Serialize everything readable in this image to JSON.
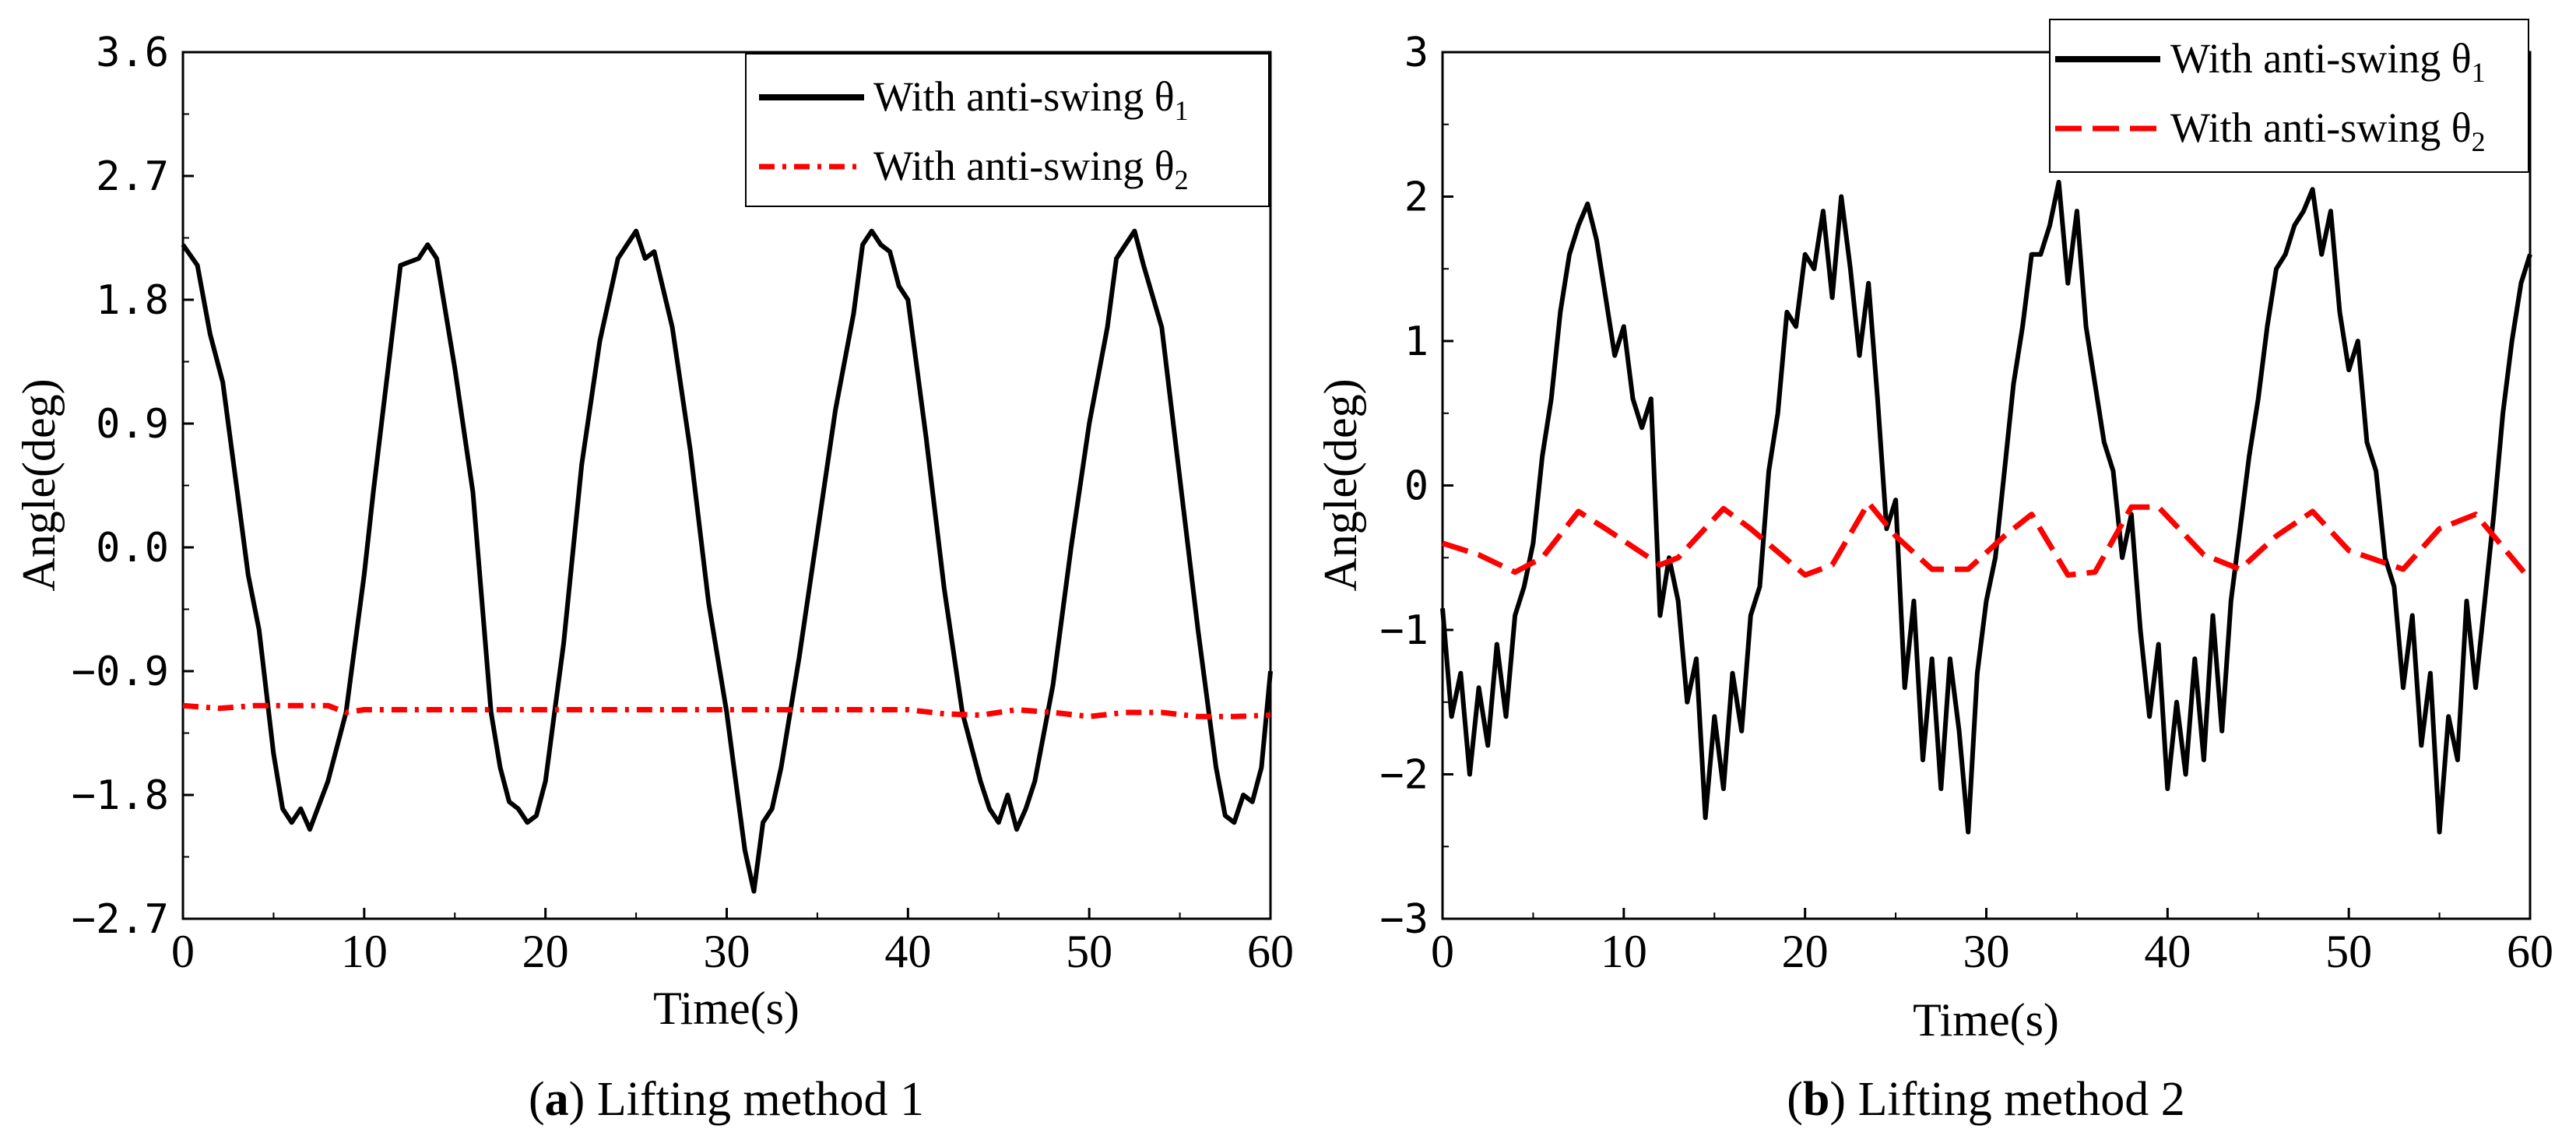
{
  "chart_data": [
    {
      "type": "line",
      "panel_letter": "a",
      "caption_text": "Lifting method 1",
      "xlabel": "Time(s)",
      "ylabel": "Angle(deg)",
      "xlim": [
        0,
        60
      ],
      "ylim": [
        -2.7,
        3.6
      ],
      "xticks": [
        0,
        10,
        20,
        30,
        40,
        50,
        60
      ],
      "xtick_labels": [
        "0",
        "10",
        "20",
        "30",
        "40",
        "50",
        "60"
      ],
      "yticks": [
        -2.7,
        -1.8,
        -0.9,
        0.0,
        0.9,
        1.8,
        2.7,
        3.6
      ],
      "ytick_labels": [
        "−2.7",
        "−1.8",
        "−0.9",
        "0.0",
        "0.9",
        "1.8",
        "2.7",
        "3.6"
      ],
      "legend_position": "top-right",
      "series": [
        {
          "name": "With anti-swing θ1",
          "label_prefix": "With anti-swing θ",
          "label_sub": "1",
          "color": "#000000",
          "style": "solid",
          "x": [
            0,
            0.8,
            1.5,
            2.2,
            3,
            3.6,
            4.2,
            5,
            5.5,
            6,
            6.5,
            7,
            8,
            9,
            10,
            10.5,
            11,
            11.5,
            12,
            13,
            13.5,
            14,
            15,
            16,
            16.5,
            17,
            17.5,
            18,
            18.5,
            19,
            19.5,
            20,
            20.5,
            21,
            22,
            23,
            24,
            24.5,
            25,
            25.5,
            26,
            27,
            28,
            29,
            30,
            30.5,
            31,
            31.5,
            32,
            32.5,
            33,
            34,
            35,
            36,
            37,
            37.5,
            38,
            38.5,
            39,
            39.5,
            40,
            41,
            42,
            43,
            44,
            44.5,
            45,
            45.5,
            46,
            46.5,
            47,
            48,
            49,
            50,
            51,
            51.5,
            52,
            52.5,
            53,
            54,
            55,
            56,
            57,
            57.5,
            58,
            58.5,
            59,
            59.5,
            60
          ],
          "y": [
            2.2,
            2.05,
            1.55,
            1.2,
            0.4,
            -0.2,
            -0.6,
            -1.5,
            -1.9,
            -2.0,
            -1.9,
            -2.05,
            -1.7,
            -1.2,
            -0.2,
            0.4,
            0.95,
            1.5,
            2.05,
            2.1,
            2.2,
            2.1,
            1.3,
            0.4,
            -0.4,
            -1.2,
            -1.6,
            -1.85,
            -1.9,
            -2.0,
            -1.95,
            -1.7,
            -1.2,
            -0.7,
            0.6,
            1.5,
            2.1,
            2.2,
            2.3,
            2.1,
            2.15,
            1.6,
            0.7,
            -0.4,
            -1.2,
            -1.7,
            -2.2,
            -2.5,
            -2.0,
            -1.9,
            -1.6,
            -0.8,
            0.1,
            1.0,
            1.7,
            2.2,
            2.3,
            2.2,
            2.15,
            1.9,
            1.8,
            0.8,
            -0.3,
            -1.2,
            -1.7,
            -1.9,
            -2.0,
            -1.8,
            -2.05,
            -1.9,
            -1.7,
            -1.0,
            0.0,
            0.9,
            1.6,
            2.1,
            2.2,
            2.3,
            2.05,
            1.6,
            0.5,
            -0.6,
            -1.6,
            -1.95,
            -2.0,
            -1.8,
            -1.85,
            -1.6,
            -0.9
          ]
        },
        {
          "name": "With anti-swing θ2",
          "label_prefix": "With anti-swing θ",
          "label_sub": "2",
          "color": "#ff0000",
          "style": "dashdot",
          "x": [
            0,
            2,
            4,
            6,
            8,
            9,
            10,
            20,
            30,
            40,
            42,
            44,
            46,
            48,
            50,
            52,
            54,
            56,
            58,
            60
          ],
          "y": [
            -1.15,
            -1.17,
            -1.15,
            -1.15,
            -1.15,
            -1.2,
            -1.18,
            -1.18,
            -1.18,
            -1.18,
            -1.21,
            -1.22,
            -1.18,
            -1.2,
            -1.23,
            -1.2,
            -1.2,
            -1.23,
            -1.23,
            -1.22
          ]
        }
      ]
    },
    {
      "type": "line",
      "panel_letter": "b",
      "caption_text": "Lifting method 2",
      "xlabel": "Time(s)",
      "ylabel": "Angle(deg)",
      "xlim": [
        0,
        60
      ],
      "ylim": [
        -3,
        3
      ],
      "xticks": [
        0,
        10,
        20,
        30,
        40,
        50,
        60
      ],
      "xtick_labels": [
        "0",
        "10",
        "20",
        "30",
        "40",
        "50",
        "60"
      ],
      "yticks": [
        -3,
        -2,
        -1,
        0,
        1,
        2,
        3
      ],
      "ytick_labels": [
        "−3",
        "−2",
        "−1",
        "0",
        "1",
        "2",
        "3"
      ],
      "legend_position": "top-right",
      "series": [
        {
          "name": "With anti-swing θ1",
          "label_prefix": "With anti-swing θ",
          "label_sub": "1",
          "color": "#000000",
          "style": "solid",
          "x": [
            0,
            0.5,
            1,
            1.5,
            2,
            2.5,
            3,
            3.5,
            4,
            4.5,
            5,
            5.5,
            6,
            6.5,
            7,
            7.5,
            8,
            8.5,
            9,
            9.5,
            10,
            10.5,
            11,
            11.5,
            12,
            12.5,
            13,
            13.5,
            14,
            14.5,
            15,
            15.5,
            16,
            16.5,
            17,
            17.5,
            18,
            18.5,
            19,
            19.5,
            20,
            20.5,
            21,
            21.5,
            22,
            22.5,
            23,
            23.5,
            24,
            24.5,
            25,
            25.5,
            26,
            26.5,
            27,
            27.5,
            28,
            28.5,
            29,
            29.5,
            30,
            30.5,
            31,
            31.5,
            32,
            32.5,
            33,
            33.5,
            34,
            34.5,
            35,
            35.5,
            36,
            36.5,
            37,
            37.5,
            38,
            38.5,
            39,
            39.5,
            40,
            40.5,
            41,
            41.5,
            42,
            42.5,
            43,
            43.5,
            44,
            44.5,
            45,
            45.5,
            46,
            46.5,
            47,
            47.5,
            48,
            48.5,
            49,
            49.5,
            50,
            50.5,
            51,
            51.5,
            52,
            52.5,
            53,
            53.5,
            54,
            54.5,
            55,
            55.5,
            56,
            56.5,
            57,
            57.5,
            58,
            58.5,
            59,
            59.5,
            60
          ],
          "y": [
            -0.85,
            -1.6,
            -1.3,
            -2.0,
            -1.4,
            -1.8,
            -1.1,
            -1.6,
            -0.9,
            -0.7,
            -0.4,
            0.2,
            0.6,
            1.2,
            1.6,
            1.8,
            1.95,
            1.7,
            1.3,
            0.9,
            1.1,
            0.6,
            0.4,
            0.6,
            -0.9,
            -0.5,
            -0.8,
            -1.5,
            -1.2,
            -2.3,
            -1.6,
            -2.1,
            -1.3,
            -1.7,
            -0.9,
            -0.7,
            0.1,
            0.5,
            1.2,
            1.1,
            1.6,
            1.5,
            1.9,
            1.3,
            2.0,
            1.5,
            0.9,
            1.4,
            0.6,
            -0.3,
            -0.1,
            -1.4,
            -0.8,
            -1.9,
            -1.2,
            -2.1,
            -1.2,
            -1.7,
            -2.4,
            -1.3,
            -0.8,
            -0.5,
            0.1,
            0.7,
            1.1,
            1.6,
            1.6,
            1.8,
            2.1,
            1.4,
            1.9,
            1.1,
            0.7,
            0.3,
            0.1,
            -0.5,
            -0.2,
            -1.0,
            -1.6,
            -1.1,
            -2.1,
            -1.5,
            -2.0,
            -1.2,
            -1.9,
            -0.9,
            -1.7,
            -0.8,
            -0.3,
            0.2,
            0.6,
            1.1,
            1.5,
            1.6,
            1.8,
            1.9,
            2.05,
            1.6,
            1.9,
            1.2,
            0.8,
            1.0,
            0.3,
            0.1,
            -0.5,
            -0.7,
            -1.4,
            -0.9,
            -1.8,
            -1.3,
            -2.4,
            -1.6,
            -1.9,
            -0.8,
            -1.4,
            -0.8,
            -0.2,
            0.5,
            1.0,
            1.4,
            1.6
          ]
        },
        {
          "name": "With anti-swing θ2",
          "label_prefix": "With anti-swing θ",
          "label_sub": "2",
          "color": "#ff0000",
          "style": "dashed",
          "x": [
            0,
            2,
            4,
            5.5,
            7.5,
            9,
            12,
            13,
            15.5,
            17,
            20,
            21.5,
            23.5,
            25,
            27,
            29,
            31,
            32.5,
            34.5,
            36,
            38,
            39.5,
            42,
            44,
            46,
            48,
            50,
            53,
            55,
            57,
            60
          ],
          "y": [
            -0.4,
            -0.48,
            -0.6,
            -0.5,
            -0.18,
            -0.3,
            -0.55,
            -0.5,
            -0.16,
            -0.3,
            -0.62,
            -0.55,
            -0.12,
            -0.35,
            -0.58,
            -0.58,
            -0.35,
            -0.2,
            -0.62,
            -0.6,
            -0.15,
            -0.15,
            -0.48,
            -0.58,
            -0.35,
            -0.18,
            -0.45,
            -0.58,
            -0.3,
            -0.2,
            -0.65
          ]
        }
      ]
    }
  ]
}
